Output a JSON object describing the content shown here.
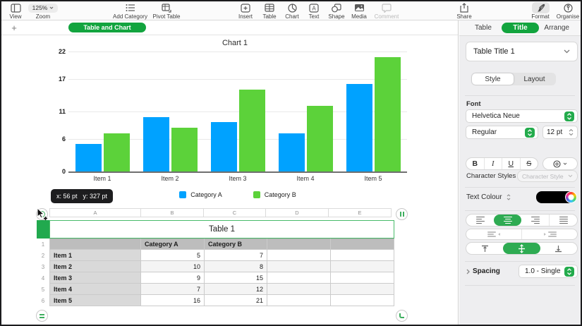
{
  "toolbar": {
    "zoom_value": "125%",
    "items": [
      {
        "label": "View"
      },
      {
        "label": "Zoom"
      },
      {
        "label": "Add Category"
      },
      {
        "label": "Pivot Table"
      },
      {
        "label": "Insert"
      },
      {
        "label": "Table"
      },
      {
        "label": "Chart"
      },
      {
        "label": "Text"
      },
      {
        "label": "Shape"
      },
      {
        "label": "Media"
      },
      {
        "label": "Comment",
        "disabled": true
      },
      {
        "label": "Share"
      },
      {
        "label": "Format",
        "active": true
      },
      {
        "label": "Organise"
      }
    ]
  },
  "tabbar": {
    "add_button": "+",
    "active_sheet": "Table and Chart"
  },
  "chart_data": {
    "type": "bar",
    "title": "Chart 1",
    "categories": [
      "Item 1",
      "Item 2",
      "Item 3",
      "Item 4",
      "Item 5"
    ],
    "series": [
      {
        "name": "Category A",
        "color": "#00A2FF",
        "values": [
          5,
          10,
          9,
          7,
          16
        ]
      },
      {
        "name": "Category B",
        "color": "#5CD23A",
        "values": [
          7,
          8,
          15,
          12,
          21
        ]
      }
    ],
    "yticks": [
      0,
      6,
      11,
      17,
      22
    ],
    "ylim": [
      0,
      22
    ],
    "grid": true,
    "legend_position": "bottom"
  },
  "tooltip": {
    "x": "x: 56 pt",
    "y": "y: 327 pt"
  },
  "table": {
    "column_headers": [
      "A",
      "B",
      "C",
      "D",
      "E"
    ],
    "title": "Table 1",
    "rows": [
      {
        "num": "1",
        "cells": [
          "",
          "Category A",
          "Category B",
          "",
          ""
        ]
      },
      {
        "num": "2",
        "cells": [
          "Item 1",
          "5",
          "7",
          "",
          ""
        ]
      },
      {
        "num": "3",
        "cells": [
          "Item 2",
          "10",
          "8",
          "",
          ""
        ]
      },
      {
        "num": "4",
        "cells": [
          "Item 3",
          "9",
          "15",
          "",
          ""
        ]
      },
      {
        "num": "5",
        "cells": [
          "Item 4",
          "7",
          "12",
          "",
          ""
        ]
      },
      {
        "num": "6",
        "cells": [
          "Item 5",
          "16",
          "21",
          "",
          ""
        ]
      }
    ]
  },
  "sidebar": {
    "tabs": [
      {
        "label": "Table"
      },
      {
        "label": "Title",
        "active": true
      },
      {
        "label": "Arrange"
      }
    ],
    "selection_name": "Table Title 1",
    "style_tabs": [
      {
        "label": "Style",
        "active": true
      },
      {
        "label": "Layout"
      }
    ],
    "font": {
      "section_label": "Font",
      "family": "Helvetica Neue",
      "weight": "Regular",
      "size": "12 pt",
      "bold": "B",
      "italic": "I",
      "underline": "U",
      "strikethrough": "S"
    },
    "character_styles": {
      "label": "Character Styles",
      "value": "Character Style"
    },
    "text_colour": {
      "label": "Text Colour",
      "value": "#000000"
    },
    "spacing": {
      "label": "Spacing",
      "value": "1.0 - Single"
    }
  },
  "colors": {
    "accent_green": "#12A43E",
    "bar_blue": "#00A2FF",
    "bar_green": "#5CD23A",
    "table_selection_green": "#48BB69",
    "selected_control_green": "#2EAB52"
  }
}
